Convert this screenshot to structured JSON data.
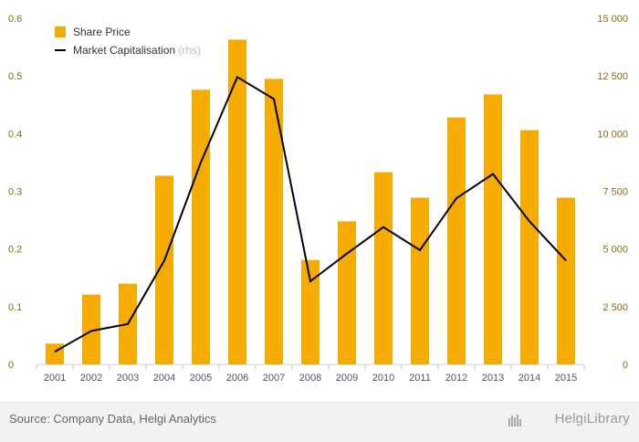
{
  "chart_data": {
    "type": "bar",
    "categories": [
      "2001",
      "2002",
      "2003",
      "2004",
      "2005",
      "2006",
      "2007",
      "2008",
      "2009",
      "2010",
      "2011",
      "2012",
      "2013",
      "2014",
      "2015"
    ],
    "series": [
      {
        "name": "Share Price",
        "kind": "bar",
        "axis": "left",
        "color": "#f5ab00",
        "values": [
          0.036,
          0.121,
          0.14,
          0.327,
          0.476,
          0.563,
          0.495,
          0.181,
          0.248,
          0.333,
          0.289,
          0.428,
          0.468,
          0.406,
          0.289
        ]
      },
      {
        "name": "Market Capitalisation",
        "legend_suffix": "(rhs)",
        "kind": "line",
        "axis": "right",
        "color": "#000000",
        "values": [
          550,
          1450,
          1750,
          4500,
          8750,
          12450,
          11500,
          3600,
          4800,
          5950,
          4950,
          7200,
          8250,
          6200,
          4500
        ]
      }
    ],
    "y_left": {
      "ylim": [
        0,
        0.6
      ],
      "ticks": [
        "0",
        "0.1",
        "0.2",
        "0.3",
        "0.4",
        "0.5",
        "0.6"
      ]
    },
    "y_right": {
      "ylim": [
        0,
        15000
      ],
      "ticks": [
        "0",
        "2 500",
        "5 000",
        "7 500",
        "10 000",
        "12 500",
        "15 000"
      ]
    },
    "grid": false,
    "legend_position": "top-left"
  },
  "footer": {
    "source": "Source: Company Data, Helgi Analytics",
    "brand": "HelgiLibrary"
  }
}
